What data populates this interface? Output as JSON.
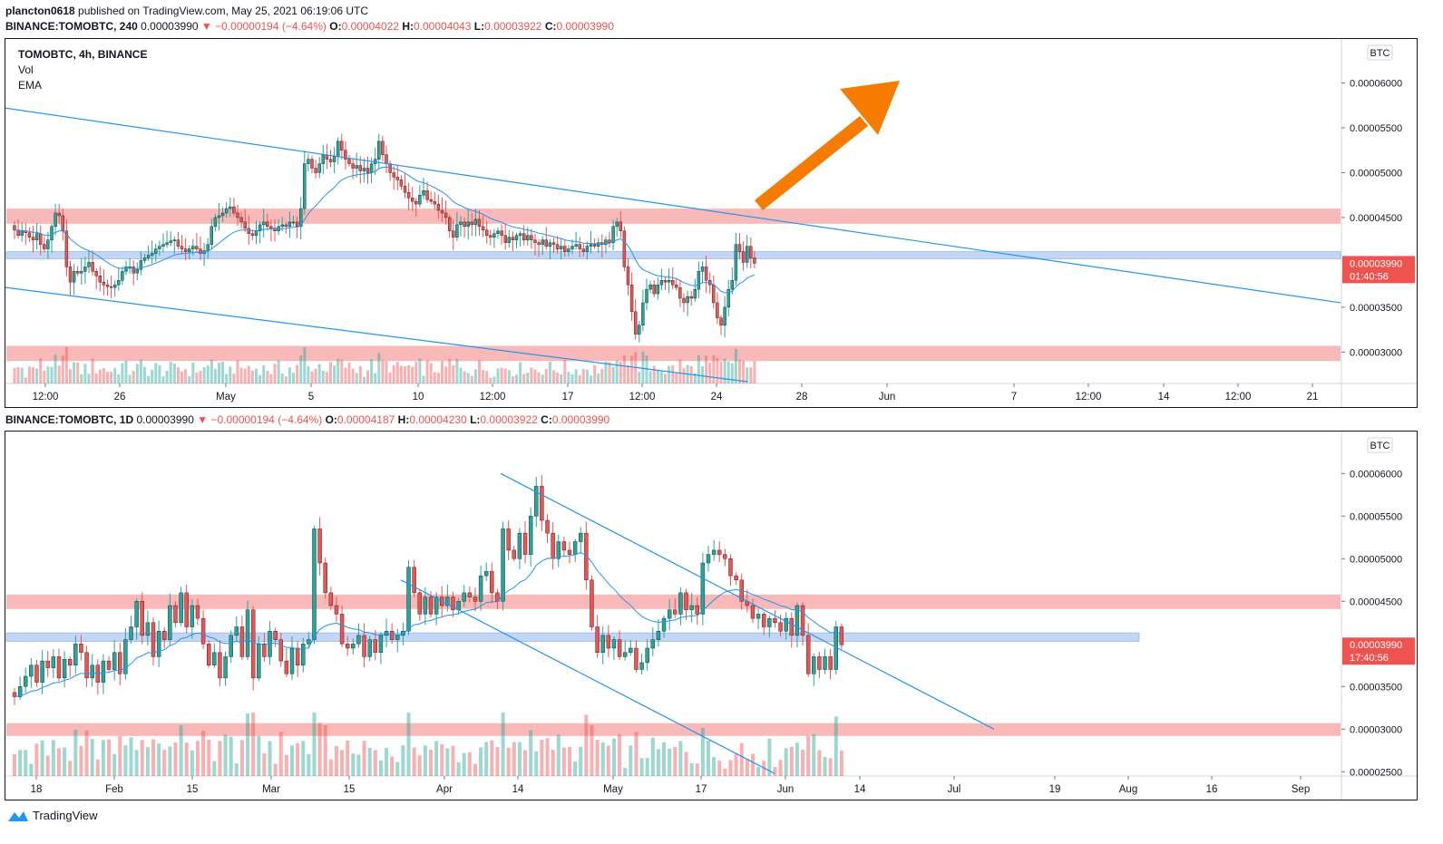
{
  "header": {
    "publisher": "plancton0618",
    "published_text": "published on TradingView.com, May 25, 2021 06:19:06 UTC"
  },
  "colors": {
    "up": "#26a69a",
    "down": "#ef5350",
    "ema": "#2196f3",
    "trend": "#2196f3",
    "resistance_zone": "#f7a1a1",
    "support_zone": "#a9c5f0",
    "arrow": "#f57c00",
    "price_label": "#ef5350"
  },
  "chart_data": [
    {
      "type": "candlestick",
      "symbol_line": {
        "symbol": "BINANCE:TOMOBTC, 240",
        "last": "0.00003990",
        "change": "−0.00000194 (−4.64%)",
        "o_label": "O:",
        "o": "0.00004022",
        "h_label": "H:",
        "h": "0.00004043",
        "l_label": "L:",
        "l": "0.00003922",
        "c_label": "C:",
        "c": "0.00003990"
      },
      "legend": {
        "title": "TOMOBTC, 4h, BINANCE",
        "items": [
          "Vol",
          "EMA"
        ]
      },
      "currency": "BTC",
      "y_ticks": [
        "0.00006000",
        "0.00005500",
        "0.00005000",
        "0.00004500",
        "0.00003500",
        "0.00003000"
      ],
      "y_tick_values": [
        6.0,
        5.5,
        5.0,
        4.5,
        3.5,
        3.0
      ],
      "ylim": [
        2.65,
        6.45
      ],
      "price_label": {
        "value": "0.00003990",
        "countdown": "01:40:56",
        "level": 3.99
      },
      "x_ticks": [
        "12:00",
        "26",
        "May",
        "5",
        "10",
        "12:00",
        "17",
        "12:00",
        "24",
        "28",
        "Jun",
        "7",
        "12:00",
        "14",
        "12:00",
        "21"
      ],
      "x_tick_pos": [
        44,
        126,
        243,
        337,
        455,
        537,
        620,
        702,
        784,
        878,
        972,
        1112,
        1194,
        1277,
        1359,
        1441
      ],
      "bar_x_start": 10,
      "bar_spacing": 4.1,
      "candle_width": 3,
      "close_series": [
        4.36,
        4.3,
        4.35,
        4.33,
        4.28,
        4.25,
        4.32,
        4.2,
        4.15,
        4.25,
        4.4,
        4.55,
        4.52,
        4.35,
        3.95,
        3.78,
        3.9,
        3.88,
        3.9,
        3.95,
        4.0,
        3.9,
        3.85,
        3.78,
        3.75,
        3.73,
        3.72,
        3.75,
        3.8,
        3.9,
        3.95,
        3.95,
        3.88,
        3.92,
        4.02,
        4.05,
        4.08,
        4.1,
        4.15,
        4.18,
        4.2,
        4.22,
        4.24,
        4.25,
        4.18,
        4.15,
        4.12,
        4.15,
        4.18,
        4.15,
        4.1,
        4.13,
        4.2,
        4.4,
        4.5,
        4.52,
        4.55,
        4.6,
        4.62,
        4.55,
        4.5,
        4.45,
        4.38,
        4.32,
        4.3,
        4.35,
        4.42,
        4.45,
        4.4,
        4.38,
        4.35,
        4.4,
        4.42,
        4.4,
        4.45,
        4.45,
        4.4,
        4.6,
        5.1,
        5.15,
        5.05,
        5.0,
        5.1,
        5.2,
        5.15,
        5.12,
        5.18,
        5.35,
        5.25,
        5.15,
        5.1,
        5.05,
        5.08,
        5.02,
        5.05,
        5.0,
        5.1,
        5.15,
        5.35,
        5.2,
        5.1,
        5.0,
        4.95,
        4.92,
        4.85,
        4.78,
        4.72,
        4.68,
        4.65,
        4.75,
        4.8,
        4.7,
        4.68,
        4.65,
        4.58,
        4.55,
        4.5,
        4.35,
        4.28,
        4.42,
        4.45,
        4.4,
        4.45,
        4.42,
        4.48,
        4.4,
        4.36,
        4.3,
        4.28,
        4.32,
        4.35,
        4.3,
        4.22,
        4.28,
        4.25,
        4.3,
        4.32,
        4.25,
        4.3,
        4.25,
        4.22,
        4.2,
        4.25,
        4.18,
        4.22,
        4.2,
        4.15,
        4.18,
        4.12,
        4.15,
        4.18,
        4.2,
        4.15,
        4.12,
        4.18,
        4.2,
        4.18,
        4.22,
        4.2,
        4.25,
        4.22,
        4.4,
        4.45,
        4.35,
        3.95,
        3.75,
        3.45,
        3.2,
        3.3,
        3.55,
        3.7,
        3.75,
        3.65,
        3.75,
        3.8,
        3.78,
        3.8,
        3.75,
        3.72,
        3.6,
        3.55,
        3.62,
        3.6,
        3.7,
        3.9,
        3.95,
        3.8,
        3.75,
        3.55,
        3.38,
        3.3,
        3.5,
        3.7,
        3.8,
        4.2,
        4.12,
        4.0,
        4.18,
        4.05,
        3.99
      ],
      "volume_max_bars": 40,
      "channel_upper": [
        [
          0,
          5.72
        ],
        [
          1472,
          3.55
        ]
      ],
      "channel_lower": [
        [
          0,
          3.72
        ],
        [
          818,
          2.67
        ]
      ],
      "zones": [
        {
          "kind": "resistance",
          "low": 4.43,
          "high": 4.6,
          "x_end": 1472
        },
        {
          "kind": "support",
          "low": 4.04,
          "high": 4.12,
          "x_end": 1472
        },
        {
          "kind": "resistance",
          "low": 2.9,
          "high": 3.07,
          "x_end": 1472
        }
      ],
      "ema_period": 20
    },
    {
      "type": "candlestick",
      "symbol_line": {
        "symbol": "BINANCE:TOMOBTC, 1D",
        "last": "0.00003990",
        "change": "−0.00000194 (−4.64%)",
        "o_label": "O:",
        "o": "0.00004187",
        "h_label": "H:",
        "h": "0.00004230",
        "l_label": "L:",
        "l": "0.00003922",
        "c_label": "C:",
        "c": "0.00003990"
      },
      "currency": "BTC",
      "y_ticks": [
        "0.00006000",
        "0.00005500",
        "0.00005000",
        "0.00004500",
        "0.00003500",
        "0.00003000",
        "0.00002500"
      ],
      "y_tick_values": [
        6.0,
        5.5,
        5.0,
        4.5,
        3.5,
        3.0,
        2.5
      ],
      "ylim": [
        2.45,
        6.45
      ],
      "price_label": {
        "value": "0.00003990",
        "countdown": "17:40:56",
        "level": 3.99
      },
      "x_ticks": [
        "18",
        "Feb",
        "15",
        "Mar",
        "15",
        "Apr",
        "14",
        "May",
        "17",
        "Jun",
        "14",
        "Jul",
        "19",
        "Aug",
        "16",
        "Sep"
      ],
      "x_tick_pos": [
        34,
        120,
        206,
        293,
        379,
        484,
        565,
        670,
        767,
        860,
        942,
        1046,
        1157,
        1238,
        1330,
        1428
      ],
      "bar_x_start": 10,
      "bar_spacing": 6.12,
      "candle_width": 4,
      "close_series": [
        3.38,
        3.5,
        3.62,
        3.75,
        3.55,
        3.8,
        3.72,
        3.85,
        3.6,
        3.82,
        3.75,
        4.0,
        3.9,
        3.6,
        3.75,
        3.55,
        3.8,
        3.7,
        3.9,
        3.65,
        4.05,
        4.2,
        4.5,
        4.1,
        4.25,
        3.85,
        4.15,
        4.05,
        4.45,
        4.25,
        4.6,
        4.2,
        4.45,
        4.3,
        4.0,
        3.75,
        3.9,
        3.6,
        3.85,
        4.1,
        4.2,
        3.85,
        4.4,
        3.6,
        4.0,
        3.85,
        4.15,
        4.05,
        3.8,
        3.65,
        3.95,
        3.75,
        4.0,
        4.05,
        5.35,
        4.95,
        4.6,
        4.45,
        4.35,
        4.0,
        3.95,
        4.0,
        4.1,
        3.85,
        4.05,
        3.9,
        4.1,
        4.15,
        4.05,
        4.1,
        4.15,
        4.9,
        4.6,
        4.35,
        4.55,
        4.35,
        4.55,
        4.45,
        4.55,
        4.4,
        4.5,
        4.6,
        4.55,
        4.5,
        4.8,
        4.85,
        4.6,
        4.5,
        5.35,
        5.1,
        5.0,
        5.3,
        5.05,
        5.5,
        5.85,
        5.45,
        5.3,
        5.0,
        5.2,
        5.1,
        5.05,
        5.2,
        5.3,
        4.75,
        4.2,
        3.9,
        4.1,
        3.95,
        4.05,
        3.85,
        3.9,
        3.95,
        3.7,
        3.78,
        3.95,
        4.05,
        4.15,
        4.3,
        4.4,
        4.35,
        4.6,
        4.4,
        4.45,
        4.35,
        4.95,
        5.05,
        5.1,
        5.05,
        5.0,
        4.8,
        4.75,
        4.5,
        4.45,
        4.3,
        4.35,
        4.2,
        4.3,
        4.25,
        4.15,
        4.3,
        4.1,
        4.45,
        4.1,
        3.65,
        3.85,
        3.7,
        3.85,
        3.7,
        4.2,
        3.99
      ],
      "volume_max_bars": 70,
      "channel_upper": [
        [
          546,
          6.0
        ],
        [
          1090,
          3.0
        ]
      ],
      "channel_lower": [
        [
          436,
          4.75
        ],
        [
          848,
          2.48
        ]
      ],
      "zones": [
        {
          "kind": "resistance",
          "low": 4.41,
          "high": 4.58,
          "x_end": 1472
        },
        {
          "kind": "support",
          "low": 4.03,
          "high": 4.13,
          "x_end": 1250
        },
        {
          "kind": "resistance",
          "low": 2.92,
          "high": 3.07,
          "x_end": 1472
        }
      ],
      "ema_period": 20
    }
  ],
  "footer": {
    "brand": "TradingView"
  }
}
